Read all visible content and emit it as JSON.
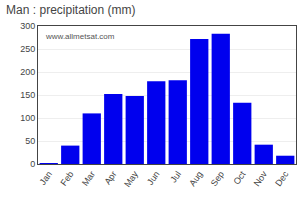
{
  "chart_data": {
    "type": "bar",
    "title": "Man : precipitation (mm)",
    "categories": [
      "Jan",
      "Feb",
      "Mar",
      "Apr",
      "May",
      "Jun",
      "Jul",
      "Aug",
      "Sep",
      "Oct",
      "Nov",
      "Dec"
    ],
    "values": [
      2,
      40,
      110,
      152,
      148,
      180,
      182,
      272,
      283,
      133,
      42,
      18
    ],
    "color": "#0000EE",
    "ylim": [
      0,
      300
    ],
    "yticks": [
      0,
      50,
      100,
      150,
      200,
      250,
      300
    ],
    "grid": true,
    "annotations": [
      "www.allmetsat.com"
    ]
  }
}
